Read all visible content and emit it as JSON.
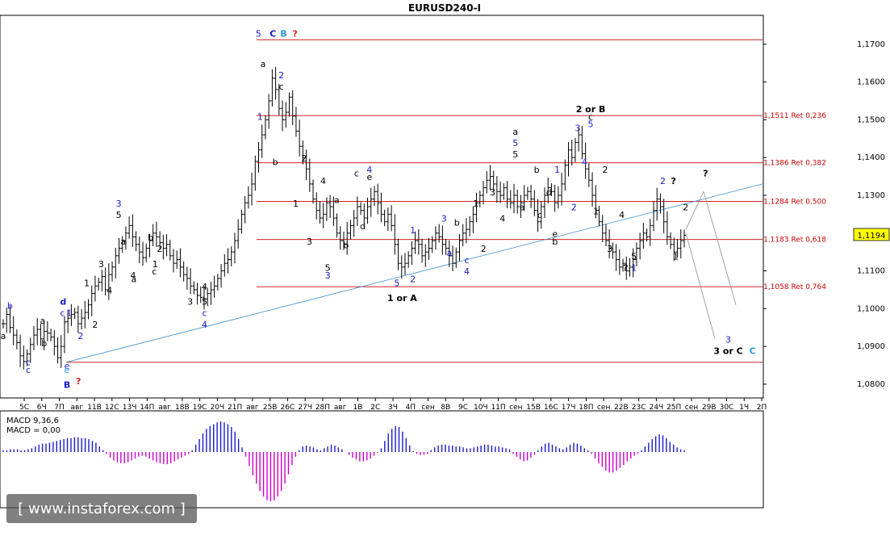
{
  "chart_data": {
    "type": "bar",
    "title": "EURUSD240-I",
    "symbol": "EURUSD",
    "timeframe": "H4",
    "ylim": [
      1.077,
      1.177
    ],
    "y_ticks": [
      "1,1700",
      "1,1600",
      "1,1500",
      "1,1400",
      "1,1300",
      "1,1194",
      "1,1100",
      "1,1000",
      "1,0900",
      "1,0800"
    ],
    "y_tick_values": [
      1.17,
      1.16,
      1.15,
      1.14,
      1.13,
      1.1194,
      1.11,
      1.1,
      1.09,
      1.08
    ],
    "current_price": "1,1194",
    "current_price_value": 1.1194,
    "x_ticks": [
      "5C",
      "6Ч",
      "7П",
      "авг",
      "11В",
      "12С",
      "13Ч",
      "14П",
      "авг",
      "18В",
      "19С",
      "20Ч",
      "21П",
      "авг",
      "25В",
      "26С",
      "27Ч",
      "28П",
      "авг",
      "1В",
      "2С",
      "3Ч",
      "4П",
      "сен",
      "8В",
      "9С",
      "10Ч",
      "11П",
      "сен",
      "15В",
      "16С",
      "17Ч",
      "18П",
      "сен",
      "22В",
      "23С",
      "24Ч",
      "25П",
      "сен",
      "29В",
      "30С",
      "1Ч",
      "2П"
    ],
    "levels": [
      {
        "label": "",
        "value": 1.1712
      },
      {
        "label": "1,1511 Ret 0,236",
        "value": 1.1511
      },
      {
        "label": "1,1386 Ret 0,382",
        "value": 1.1386
      },
      {
        "label": "1,1284 Ret 0,500",
        "value": 1.1284
      },
      {
        "label": "1,1183 Ret 0,618",
        "value": 1.1183
      },
      {
        "label": "1,1058 Ret 0,764",
        "value": 1.1058
      },
      {
        "label": "",
        "value": 1.0858
      }
    ],
    "trendline": {
      "from": [
        0,
        1.0858
      ],
      "to": [
        1,
        1.133
      ]
    },
    "projections": [
      {
        "from": [
          0.825,
          1.12
        ],
        "to": [
          0.856,
          1.131
        ],
        "via": [
          0.86,
          1.131
        ],
        "to2": [
          0.91,
          1.1
        ]
      },
      {
        "from": [
          0.856,
          1.131
        ],
        "to": [
          0.88,
          1.092
        ]
      }
    ],
    "closes": [
      1.096,
      1.0985,
      1.095,
      1.093,
      1.091,
      1.0875,
      1.086,
      1.088,
      1.0905,
      1.093,
      1.0945,
      1.092,
      1.094,
      1.0935,
      1.0925,
      1.09,
      1.087,
      1.09,
      1.0965,
      1.0975,
      1.0985,
      1.099,
      1.096,
      1.0975,
      1.099,
      1.101,
      1.104,
      1.106,
      1.107,
      1.1085,
      1.105,
      1.109,
      1.111,
      1.114,
      1.116,
      1.118,
      1.12,
      1.122,
      1.119,
      1.117,
      1.115,
      1.1135,
      1.116,
      1.118,
      1.12,
      1.119,
      1.1175,
      1.116,
      1.117,
      1.114,
      1.112,
      1.113,
      1.111,
      1.109,
      1.108,
      1.106,
      1.105,
      1.1035,
      1.103,
      1.1025,
      1.104,
      1.105,
      1.106,
      1.108,
      1.11,
      1.112,
      1.113,
      1.115,
      1.118,
      1.121,
      1.125,
      1.128,
      1.13,
      1.133,
      1.139,
      1.142,
      1.146,
      1.15,
      1.155,
      1.161,
      1.158,
      1.153,
      1.15,
      1.152,
      1.156,
      1.151,
      1.147,
      1.143,
      1.14,
      1.137,
      1.133,
      1.129,
      1.126,
      1.124,
      1.125,
      1.128,
      1.127,
      1.124,
      1.12,
      1.118,
      1.117,
      1.12,
      1.122,
      1.124,
      1.127,
      1.126,
      1.124,
      1.127,
      1.129,
      1.131,
      1.128,
      1.125,
      1.123,
      1.125,
      1.122,
      1.117,
      1.112,
      1.111,
      1.112,
      1.114,
      1.116,
      1.118,
      1.117,
      1.114,
      1.115,
      1.116,
      1.118,
      1.12,
      1.119,
      1.117,
      1.116,
      1.114,
      1.112,
      1.115,
      1.118,
      1.12,
      1.121,
      1.123,
      1.125,
      1.128,
      1.13,
      1.132,
      1.134,
      1.135,
      1.133,
      1.131,
      1.13,
      1.132,
      1.129,
      1.128,
      1.13,
      1.127,
      1.128,
      1.13,
      1.131,
      1.129,
      1.126,
      1.123,
      1.127,
      1.13,
      1.132,
      1.131,
      1.128,
      1.13,
      1.133,
      1.138,
      1.142,
      1.14,
      1.144,
      1.146,
      1.141,
      1.137,
      1.134,
      1.13,
      1.126,
      1.123,
      1.12,
      1.118,
      1.116,
      1.115,
      1.113,
      1.111,
      1.112,
      1.11,
      1.111,
      1.113,
      1.116,
      1.118,
      1.12,
      1.119,
      1.122,
      1.126,
      1.129,
      1.127,
      1.123,
      1.119,
      1.117,
      1.115,
      1.116,
      1.118,
      1.1194
    ],
    "macd": {
      "label": "MACD 9,36,6",
      "value_label": "MACD = 0,00",
      "values": [
        0.02,
        0.02,
        0.03,
        0.03,
        0.03,
        0.02,
        0.02,
        0.03,
        0.04,
        0.06,
        0.08,
        0.09,
        0.09,
        0.1,
        0.11,
        0.12,
        0.13,
        0.14,
        0.15,
        0.15,
        0.16,
        0.16,
        0.15,
        0.15,
        0.14,
        0.12,
        0.1,
        0.06,
        0.02,
        -0.02,
        -0.06,
        -0.09,
        -0.11,
        -0.12,
        -0.12,
        -0.11,
        -0.09,
        -0.07,
        -0.05,
        -0.04,
        -0.05,
        -0.07,
        -0.09,
        -0.11,
        -0.12,
        -0.13,
        -0.13,
        -0.12,
        -0.1,
        -0.08,
        -0.06,
        -0.04,
        -0.02,
        0.02,
        0.08,
        0.14,
        0.2,
        0.25,
        0.28,
        0.3,
        0.32,
        0.33,
        0.32,
        0.3,
        0.27,
        0.22,
        0.14,
        0.05,
        -0.05,
        -0.15,
        -0.25,
        -0.34,
        -0.42,
        -0.48,
        -0.52,
        -0.53,
        -0.52,
        -0.48,
        -0.42,
        -0.34,
        -0.24,
        -0.14,
        -0.05,
        0.02,
        0.06,
        0.07,
        0.06,
        0.05,
        0.03,
        0.02,
        0.04,
        0.06,
        0.08,
        0.07,
        0.05,
        0.03,
        0.0,
        -0.03,
        -0.06,
        -0.08,
        -0.1,
        -0.1,
        -0.09,
        -0.07,
        -0.04,
        -0.01,
        0.04,
        0.12,
        0.2,
        0.25,
        0.28,
        0.27,
        0.22,
        0.15,
        0.07,
        0.01,
        -0.02,
        -0.03,
        -0.03,
        -0.02,
        0.02,
        0.05,
        0.07,
        0.08,
        0.08,
        0.07,
        0.07,
        0.06,
        0.06,
        0.05,
        0.04,
        0.04,
        0.05,
        0.06,
        0.07,
        0.08,
        0.08,
        0.07,
        0.06,
        0.06,
        0.05,
        0.04,
        0.03,
        -0.02,
        -0.05,
        -0.08,
        -0.1,
        -0.09,
        -0.06,
        -0.03,
        0.02,
        0.06,
        0.09,
        0.1,
        0.08,
        0.06,
        0.04,
        0.03,
        0.05,
        0.08,
        0.1,
        0.09,
        0.07,
        0.04,
        0.02,
        -0.02,
        -0.07,
        -0.12,
        -0.16,
        -0.2,
        -0.22,
        -0.22,
        -0.2,
        -0.17,
        -0.14,
        -0.1,
        -0.07,
        -0.04,
        -0.02,
        0.02,
        0.06,
        0.1,
        0.14,
        0.17,
        0.19,
        0.18,
        0.15,
        0.11,
        0.08,
        0.05,
        0.03,
        0.02
      ]
    },
    "wave_labels": [
      {
        "text": "5",
        "color": "#1a1acc",
        "x": 0.338,
        "y": 1.172
      },
      {
        "text": "C",
        "color": "#1a1acc",
        "x": 0.357,
        "y": 1.172,
        "bold": true
      },
      {
        "text": "B",
        "color": "#2a9ad8",
        "x": 0.371,
        "y": 1.172,
        "bold": true
      },
      {
        "text": "?",
        "color": "#e02020",
        "x": 0.386,
        "y": 1.172,
        "bold": true
      },
      {
        "text": "a",
        "color": "#000000",
        "x": 0.344,
        "y": 1.164
      },
      {
        "text": "2",
        "color": "#1a1acc",
        "x": 0.368,
        "y": 1.161
      },
      {
        "text": "c",
        "color": "#000000",
        "x": 0.368,
        "y": 1.158
      },
      {
        "text": "1",
        "color": "#1a1acc",
        "x": 0.34,
        "y": 1.15
      },
      {
        "text": "b",
        "color": "#000000",
        "x": 0.36,
        "y": 1.138
      },
      {
        "text": "2",
        "color": "#000000",
        "x": 0.398,
        "y": 1.139
      },
      {
        "text": "4",
        "color": "#000000",
        "x": 0.423,
        "y": 1.133
      },
      {
        "text": "1",
        "color": "#000000",
        "x": 0.387,
        "y": 1.127
      },
      {
        "text": "3",
        "color": "#000000",
        "x": 0.405,
        "y": 1.117
      },
      {
        "text": "5",
        "color": "#000000",
        "x": 0.429,
        "y": 1.11
      },
      {
        "text": "3",
        "color": "#1a1acc",
        "x": 0.429,
        "y": 1.108
      },
      {
        "text": "a",
        "color": "#000000",
        "x": 0.441,
        "y": 1.128
      },
      {
        "text": "b",
        "color": "#000000",
        "x": 0.453,
        "y": 1.116
      },
      {
        "text": "c",
        "color": "#000000",
        "x": 0.467,
        "y": 1.135
      },
      {
        "text": "e",
        "color": "#000000",
        "x": 0.484,
        "y": 1.134
      },
      {
        "text": "4",
        "color": "#1a1acc",
        "x": 0.484,
        "y": 1.136
      },
      {
        "text": "d",
        "color": "#000000",
        "x": 0.475,
        "y": 1.121
      },
      {
        "text": "1",
        "color": "#1a1acc",
        "x": 0.541,
        "y": 1.12
      },
      {
        "text": "5",
        "color": "#1a1acc",
        "x": 0.52,
        "y": 1.106
      },
      {
        "text": "2",
        "color": "#1a1acc",
        "x": 0.541,
        "y": 1.107
      },
      {
        "text": "1 or A",
        "color": "#000000",
        "x": 0.527,
        "y": 1.102,
        "bold": true
      },
      {
        "text": "3",
        "color": "#1a1acc",
        "x": 0.582,
        "y": 1.123
      },
      {
        "text": "b",
        "color": "#000000",
        "x": 0.599,
        "y": 1.122
      },
      {
        "text": "a",
        "color": "#1a1acc",
        "x": 0.589,
        "y": 1.114
      },
      {
        "text": "c",
        "color": "#1a1acc",
        "x": 0.612,
        "y": 1.112
      },
      {
        "text": "4",
        "color": "#1a1acc",
        "x": 0.612,
        "y": 1.109
      },
      {
        "text": "2",
        "color": "#000000",
        "x": 0.634,
        "y": 1.115
      },
      {
        "text": "1",
        "color": "#000000",
        "x": 0.624,
        "y": 1.127
      },
      {
        "text": "3",
        "color": "#000000",
        "x": 0.646,
        "y": 1.13
      },
      {
        "text": "4",
        "color": "#000000",
        "x": 0.659,
        "y": 1.123
      },
      {
        "text": "a",
        "color": "#000000",
        "x": 0.676,
        "y": 1.146
      },
      {
        "text": "5",
        "color": "#1a1acc",
        "x": 0.676,
        "y": 1.143
      },
      {
        "text": "5",
        "color": "#000000",
        "x": 0.676,
        "y": 1.14
      },
      {
        "text": "b",
        "color": "#000000",
        "x": 0.704,
        "y": 1.136
      },
      {
        "text": "a",
        "color": "#000000",
        "x": 0.685,
        "y": 1.126
      },
      {
        "text": "c",
        "color": "#000000",
        "x": 0.708,
        "y": 1.124
      },
      {
        "text": "1",
        "color": "#1a1acc",
        "x": 0.731,
        "y": 1.136
      },
      {
        "text": "d",
        "color": "#000000",
        "x": 0.72,
        "y": 1.13
      },
      {
        "text": "e",
        "color": "#000000",
        "x": 0.728,
        "y": 1.119
      },
      {
        "text": "b",
        "color": "#000000",
        "x": 0.728,
        "y": 1.117
      },
      {
        "text": "2",
        "color": "#1a1acc",
        "x": 0.753,
        "y": 1.126
      },
      {
        "text": "3",
        "color": "#1a1acc",
        "x": 0.758,
        "y": 1.147
      },
      {
        "text": "2 or B",
        "color": "#000000",
        "x": 0.775,
        "y": 1.152,
        "bold": true
      },
      {
        "text": "c",
        "color": "#000000",
        "x": 0.775,
        "y": 1.15
      },
      {
        "text": "5",
        "color": "#1a1acc",
        "x": 0.775,
        "y": 1.148
      },
      {
        "text": "4",
        "color": "#1a1acc",
        "x": 0.767,
        "y": 1.138
      },
      {
        "text": "2",
        "color": "#000000",
        "x": 0.794,
        "y": 1.136
      },
      {
        "text": "1",
        "color": "#000000",
        "x": 0.782,
        "y": 1.125
      },
      {
        "text": "4",
        "color": "#000000",
        "x": 0.816,
        "y": 1.124
      },
      {
        "text": "3",
        "color": "#000000",
        "x": 0.8,
        "y": 1.115
      },
      {
        "text": "5",
        "color": "#000000",
        "x": 0.832,
        "y": 1.113
      },
      {
        "text": "?",
        "color": "#000000",
        "x": 0.821,
        "y": 1.11,
        "bold": true
      },
      {
        "text": "1",
        "color": "#1a1acc",
        "x": 0.832,
        "y": 1.11
      },
      {
        "text": "2",
        "color": "#1a1acc",
        "x": 0.87,
        "y": 1.133
      },
      {
        "text": "?",
        "color": "#000000",
        "x": 0.884,
        "y": 1.133,
        "bold": true
      },
      {
        "text": "1",
        "color": "#000000",
        "x": 0.887,
        "y": 1.113
      },
      {
        "text": "2",
        "color": "#000000",
        "x": 0.9,
        "y": 1.126
      },
      {
        "text": "?",
        "color": "#000000",
        "x": 0.926,
        "y": 1.135,
        "bold": true
      },
      {
        "text": "3",
        "color": "#1a1acc",
        "x": 0.956,
        "y": 1.091
      },
      {
        "text": "3 or C",
        "color": "#000000",
        "x": 0.956,
        "y": 1.088,
        "bold": true
      },
      {
        "text": "C",
        "color": "#2a9ad8",
        "x": 0.988,
        "y": 1.088,
        "bold": true
      },
      {
        "text": "b",
        "color": "#1a1acc",
        "x": 0.011,
        "y": 1.1
      },
      {
        "text": "a",
        "color": "#000000",
        "x": 0.0,
        "y": 1.092
      },
      {
        "text": "a",
        "color": "#000000",
        "x": 0.054,
        "y": 1.096
      },
      {
        "text": "b",
        "color": "#000000",
        "x": 0.056,
        "y": 1.09
      },
      {
        "text": "c",
        "color": "#1a1acc",
        "x": 0.035,
        "y": 1.085
      },
      {
        "text": "c",
        "color": "#1a1acc",
        "x": 0.035,
        "y": 1.083
      },
      {
        "text": "d",
        "color": "#1a1acc",
        "x": 0.081,
        "y": 1.101,
        "bold": true
      },
      {
        "text": "c",
        "color": "#1a1acc",
        "x": 0.08,
        "y": 1.098
      },
      {
        "text": "1",
        "color": "#1a1acc",
        "x": 0.089,
        "y": 1.098
      },
      {
        "text": "e",
        "color": "#1a1acc",
        "x": 0.086,
        "y": 1.084
      },
      {
        "text": "e",
        "color": "#2a9ad8",
        "x": 0.086,
        "y": 1.083
      },
      {
        "text": "B",
        "color": "#1a1acc",
        "x": 0.086,
        "y": 1.079,
        "bold": true
      },
      {
        "text": "?",
        "color": "#e02020",
        "x": 0.101,
        "y": 1.08,
        "bold": true
      },
      {
        "text": "2",
        "color": "#1a1acc",
        "x": 0.104,
        "y": 1.092
      },
      {
        "text": "2",
        "color": "#000000",
        "x": 0.123,
        "y": 1.095
      },
      {
        "text": "1",
        "color": "#000000",
        "x": 0.112,
        "y": 1.106
      },
      {
        "text": "3",
        "color": "#000000",
        "x": 0.131,
        "y": 1.111
      },
      {
        "text": "4",
        "color": "#000000",
        "x": 0.142,
        "y": 1.104
      },
      {
        "text": "3",
        "color": "#1a1acc",
        "x": 0.154,
        "y": 1.127
      },
      {
        "text": "5",
        "color": "#000000",
        "x": 0.154,
        "y": 1.124
      },
      {
        "text": "a",
        "color": "#000000",
        "x": 0.16,
        "y": 1.117
      },
      {
        "text": "4",
        "color": "#000000",
        "x": 0.173,
        "y": 1.108
      },
      {
        "text": "b",
        "color": "#000000",
        "x": 0.196,
        "y": 1.118
      },
      {
        "text": "2",
        "color": "#000000",
        "x": 0.208,
        "y": 1.115
      },
      {
        "text": "3",
        "color": "#000000",
        "x": 0.248,
        "y": 1.101
      },
      {
        "text": "4",
        "color": "#000000",
        "x": 0.267,
        "y": 1.105
      },
      {
        "text": "5",
        "color": "#000000",
        "x": 0.267,
        "y": 1.101
      },
      {
        "text": "c",
        "color": "#1a1acc",
        "x": 0.267,
        "y": 1.098
      },
      {
        "text": "4",
        "color": "#1a1acc",
        "x": 0.267,
        "y": 1.095
      },
      {
        "text": "a",
        "color": "#000000",
        "x": 0.174,
        "y": 1.107
      },
      {
        "text": "c",
        "color": "#000000",
        "x": 0.201,
        "y": 1.109
      },
      {
        "text": "1",
        "color": "#000000",
        "x": 0.202,
        "y": 1.111
      }
    ]
  },
  "macd_label": "MACD 9,36,6",
  "macd_value_label": "MACD = 0,00",
  "watermark": "[ www.instaforex.com ]"
}
